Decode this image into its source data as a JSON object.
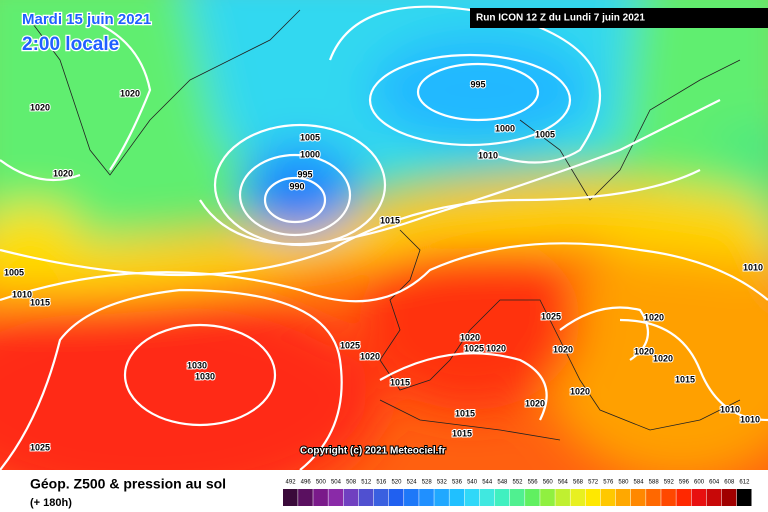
{
  "header": {
    "date": "Mardi 15 juin 2021",
    "time": "2:00 locale",
    "run": "Run ICON 12 Z du Lundi 7 juin 2021"
  },
  "copyright": "Copyright (c) 2021 Meteociel.fr",
  "footer": {
    "title": "Géop. Z500 & pression au sol",
    "lead": "(+ 180h)"
  },
  "isobar_labels": [
    "1020",
    "1020",
    "1020",
    "995",
    "1000",
    "1005",
    "1010",
    "1005",
    "1000",
    "995",
    "990",
    "1015",
    "1005",
    "1010",
    "1015",
    "1030",
    "1030",
    "1025",
    "1020",
    "1020",
    "1025",
    "1020",
    "1025",
    "1020",
    "1020",
    "1020",
    "1020",
    "1015",
    "1015",
    "1020",
    "1020",
    "1015",
    "1015",
    "1010",
    "1010",
    "1025",
    "1010"
  ],
  "legend": {
    "labels": [
      "492",
      "496",
      "500",
      "504",
      "508",
      "512",
      "516",
      "520",
      "524",
      "528",
      "532",
      "536",
      "540",
      "544",
      "548",
      "552",
      "556",
      "560",
      "564",
      "568",
      "572",
      "576",
      "580",
      "584",
      "588",
      "592",
      "596",
      "600",
      "604",
      "608",
      "612"
    ],
    "colors": [
      "#3a0a3a",
      "#5a1060",
      "#7a1a8a",
      "#8a2aa8",
      "#7040c0",
      "#5050d0",
      "#3a60e0",
      "#2060f0",
      "#1e78f8",
      "#2090ff",
      "#20a8ff",
      "#20c0ff",
      "#30d8f8",
      "#40e8e0",
      "#40f0c0",
      "#50f090",
      "#60f060",
      "#90f040",
      "#c0f030",
      "#e8f020",
      "#ffe800",
      "#ffc800",
      "#ffa800",
      "#ff8800",
      "#ff6800",
      "#ff4800",
      "#ff2800",
      "#e81010",
      "#c80808",
      "#a00000",
      "#000000"
    ]
  }
}
